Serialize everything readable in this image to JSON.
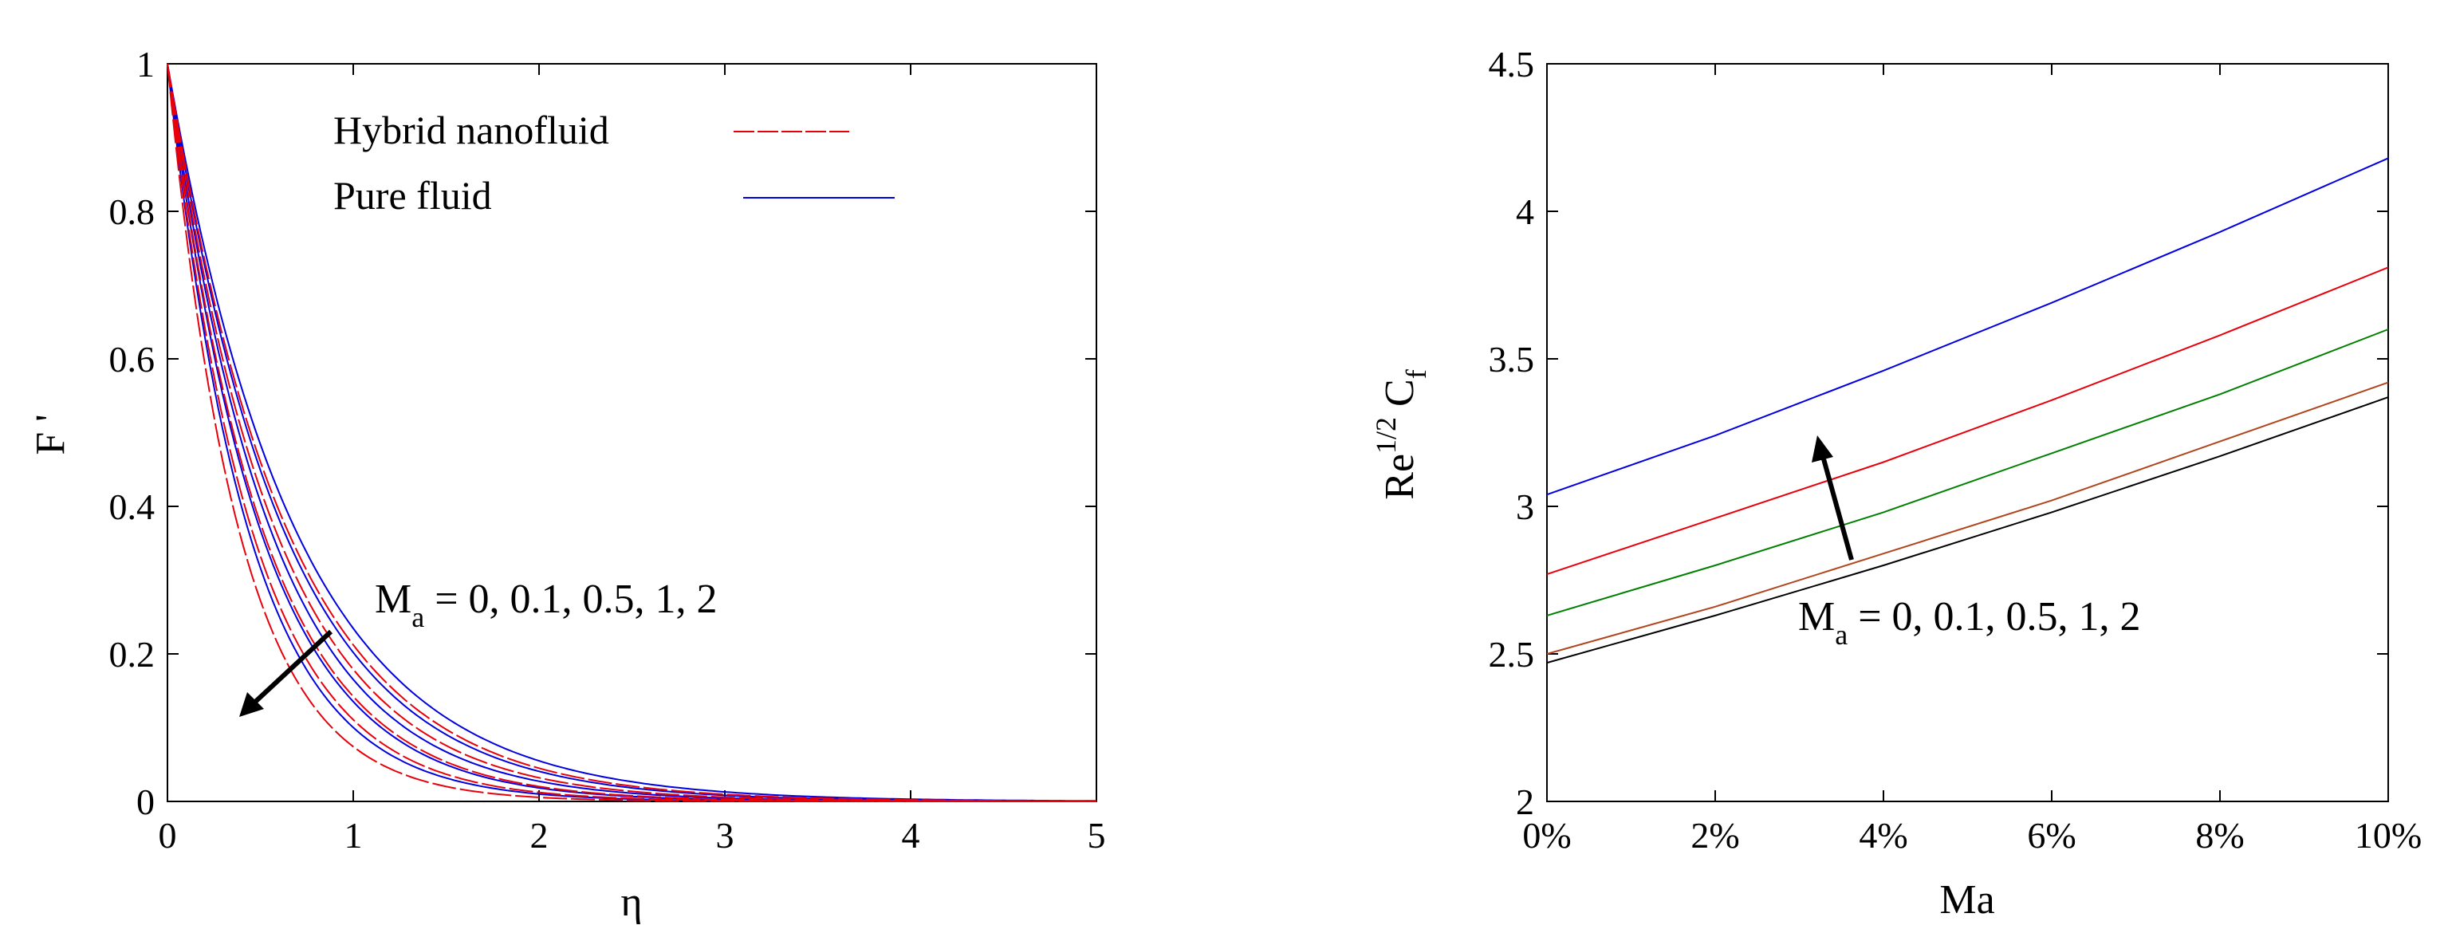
{
  "chart_data": [
    {
      "type": "line",
      "title": "",
      "xlabel": "η",
      "ylabel": "F '",
      "xlim": [
        0,
        5
      ],
      "ylim": [
        0,
        1
      ],
      "xticks": [
        "0",
        "1",
        "2",
        "3",
        "4",
        "5"
      ],
      "yticks": [
        "0",
        "0.2",
        "0.4",
        "0.6",
        "0.8",
        "1"
      ],
      "grid": false,
      "legend": {
        "placement": "top-center",
        "entries": [
          {
            "label": "Hybrid nanofluid",
            "color": "#e8000b",
            "style": "dashed"
          },
          {
            "label": "Pure fluid",
            "color": "#0000e0",
            "style": "solid"
          }
        ]
      },
      "annotation": {
        "text_main": "M",
        "text_sub": "a",
        "text_rest": " = 0, 0.1, 0.5, 1, 2",
        "arrow": "down-left"
      },
      "series": [
        {
          "color": "#0000e0",
          "decay": 2.3,
          "x": [
            0,
            0.25,
            0.5,
            0.75,
            1,
            1.5,
            2,
            2.5,
            3,
            3.5,
            4,
            4.5,
            5
          ],
          "values": [
            1,
            0.563,
            0.317,
            0.178,
            0.1,
            0.032,
            0.01,
            0.003,
            0.001,
            0.0003,
            0.0001,
            0,
            0
          ]
        },
        {
          "color": "#0000e0",
          "decay": 2.0,
          "x": [
            0,
            0.25,
            0.5,
            0.75,
            1,
            1.5,
            2,
            2.5,
            3,
            3.5,
            4,
            4.5,
            5
          ],
          "values": [
            1,
            0.607,
            0.368,
            0.223,
            0.135,
            0.05,
            0.018,
            0.007,
            0.002,
            0.001,
            0.0003,
            0.0001,
            0
          ]
        },
        {
          "color": "#0000e0",
          "decay": 1.8,
          "x": [
            0,
            0.25,
            0.5,
            0.75,
            1,
            1.5,
            2,
            2.5,
            3,
            3.5,
            4,
            4.5,
            5
          ],
          "values": [
            1,
            0.638,
            0.407,
            0.259,
            0.165,
            0.067,
            0.027,
            0.011,
            0.005,
            0.002,
            0.001,
            0.0003,
            0.0001
          ]
        },
        {
          "color": "#0000e0",
          "decay": 1.6,
          "x": [
            0,
            0.25,
            0.5,
            0.75,
            1,
            1.5,
            2,
            2.5,
            3,
            3.5,
            4,
            4.5,
            5
          ],
          "values": [
            1,
            0.67,
            0.449,
            0.301,
            0.202,
            0.091,
            0.041,
            0.018,
            0.008,
            0.004,
            0.002,
            0.001,
            0.0003
          ]
        },
        {
          "color": "#0000e0",
          "decay": 1.45,
          "x": [
            0,
            0.25,
            0.5,
            0.75,
            1,
            1.5,
            2,
            2.5,
            3,
            3.5,
            4,
            4.5,
            5
          ],
          "values": [
            1,
            0.696,
            0.484,
            0.337,
            0.235,
            0.114,
            0.055,
            0.027,
            0.013,
            0.006,
            0.003,
            0.001,
            0.0007
          ]
        },
        {
          "color": "#e8000b",
          "decay": 2.6,
          "x": [
            0,
            0.25,
            0.5,
            0.75,
            1,
            1.5,
            2,
            2.5,
            3,
            3.5,
            4,
            4.5,
            5
          ],
          "values": [
            1,
            0.522,
            0.273,
            0.142,
            0.074,
            0.02,
            0.006,
            0.002,
            0.0004,
            0.0001,
            0,
            0,
            0
          ]
        },
        {
          "color": "#e8000b",
          "decay": 2.2,
          "x": [
            0,
            0.25,
            0.5,
            0.75,
            1,
            1.5,
            2,
            2.5,
            3,
            3.5,
            4,
            4.5,
            5
          ],
          "values": [
            1,
            0.577,
            0.333,
            0.192,
            0.111,
            0.037,
            0.012,
            0.004,
            0.001,
            0.0005,
            0.0002,
            0,
            0
          ]
        },
        {
          "color": "#e8000b",
          "decay": 1.95,
          "x": [
            0,
            0.25,
            0.5,
            0.75,
            1,
            1.5,
            2,
            2.5,
            3,
            3.5,
            4,
            4.5,
            5
          ],
          "values": [
            1,
            0.614,
            0.377,
            0.232,
            0.142,
            0.054,
            0.02,
            0.008,
            0.003,
            0.001,
            0.0004,
            0.0002,
            0.0001
          ]
        },
        {
          "color": "#e8000b",
          "decay": 1.72,
          "x": [
            0,
            0.25,
            0.5,
            0.75,
            1,
            1.5,
            2,
            2.5,
            3,
            3.5,
            4,
            4.5,
            5
          ],
          "values": [
            1,
            0.651,
            0.423,
            0.275,
            0.179,
            0.076,
            0.032,
            0.014,
            0.006,
            0.002,
            0.001,
            0.0004,
            0.0002
          ]
        },
        {
          "color": "#e8000b",
          "decay": 1.55,
          "x": [
            0,
            0.25,
            0.5,
            0.75,
            1,
            1.5,
            2,
            2.5,
            3,
            3.5,
            4,
            4.5,
            5
          ],
          "values": [
            1,
            0.679,
            0.461,
            0.313,
            0.212,
            0.098,
            0.045,
            0.021,
            0.01,
            0.004,
            0.002,
            0.001,
            0.0004
          ]
        }
      ]
    },
    {
      "type": "line",
      "title": "",
      "xlabel": "Ma",
      "ylabel_main": "Re",
      "ylabel_sup": "1/2",
      "ylabel_c": " C",
      "ylabel_sub": "f",
      "xlim": [
        0,
        10
      ],
      "ylim": [
        2,
        4.5
      ],
      "xticks": [
        "0%",
        "2%",
        "4%",
        "6%",
        "8%",
        "10%"
      ],
      "yticks": [
        "2",
        "2.5",
        "3",
        "3.5",
        "4",
        "4.5"
      ],
      "grid": false,
      "annotation": {
        "text_main": "M",
        "text_sub": "a",
        "text_rest": " = 0, 0.1, 0.5, 1, 2",
        "arrow": "up"
      },
      "series": [
        {
          "color": "#000000",
          "x": [
            0,
            2,
            4,
            6,
            8,
            10
          ],
          "values": [
            2.47,
            2.63,
            2.8,
            2.98,
            3.17,
            3.37
          ]
        },
        {
          "color": "#b0451e",
          "x": [
            0,
            2,
            4,
            6,
            8,
            10
          ],
          "values": [
            2.5,
            2.66,
            2.84,
            3.02,
            3.22,
            3.42
          ]
        },
        {
          "color": "#008000",
          "x": [
            0,
            2,
            4,
            6,
            8,
            10
          ],
          "values": [
            2.63,
            2.8,
            2.98,
            3.18,
            3.38,
            3.6
          ]
        },
        {
          "color": "#e8000b",
          "x": [
            0,
            2,
            4,
            6,
            8,
            10
          ],
          "values": [
            2.77,
            2.96,
            3.15,
            3.36,
            3.58,
            3.81
          ]
        },
        {
          "color": "#0000e0",
          "x": [
            0,
            2,
            4,
            6,
            8,
            10
          ],
          "values": [
            3.04,
            3.24,
            3.46,
            3.69,
            3.93,
            4.18
          ]
        }
      ]
    }
  ]
}
